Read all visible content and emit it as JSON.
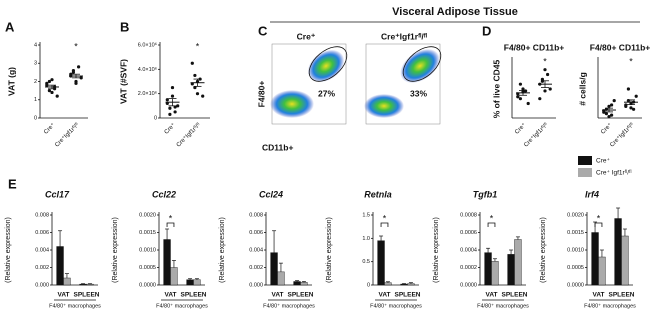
{
  "chart_data": [
    {
      "type": "dot",
      "letter": "A",
      "ylabel": "VAT (g)",
      "ylim": [
        0,
        4
      ],
      "yticks": [
        0,
        1,
        2,
        3,
        4
      ],
      "categories": [
        "Cre⁺",
        "Cre⁺Igf1rᶠˡ/ᶠˡ"
      ],
      "points": [
        [
          1.9,
          1.5,
          2.1,
          1.7,
          1.2,
          1.8,
          2.0,
          1.4,
          1.6
        ],
        [
          2.3,
          2.5,
          2.0,
          2.8,
          2.2,
          2.4,
          2.6,
          1.9
        ]
      ],
      "means": [
        1.7,
        2.3
      ],
      "sems": [
        0.1,
        0.1
      ],
      "annotation": "*",
      "color": "#111111"
    },
    {
      "type": "dot",
      "letter": "B",
      "ylabel": "VAT (#SVF)",
      "ylim": [
        0,
        6000000
      ],
      "yticks": [
        0,
        {
          "value": 2000000,
          "label": "2.0×10⁶"
        },
        {
          "value": 4000000,
          "label": "4.0×10⁶"
        },
        {
          "value": 6000000,
          "label": "6.0×10⁶"
        }
      ],
      "categories": [
        "Cre⁺",
        "Cre⁺Igf1rᶠˡ/ᶠˡ"
      ],
      "points": [
        [
          1200000,
          800000,
          2500000,
          500000,
          1000000,
          1500000,
          300000,
          1800000,
          900000
        ],
        [
          2800000,
          3500000,
          2000000,
          3200000,
          1800000,
          4500000,
          2500000,
          3000000
        ]
      ],
      "means": [
        1300000,
        2900000
      ],
      "sems": [
        300000,
        300000
      ],
      "annotation": "*",
      "color": "#111111"
    },
    {
      "type": "dot",
      "letter": "D",
      "title": "F4/80+ CD11b+",
      "ylabel": "% of live CD45",
      "ylim": [
        0,
        60
      ],
      "categories": [
        "Cre⁺",
        "Cre⁺Igf1rᶠˡ/ᶠˡ"
      ],
      "points": [
        [
          25,
          20,
          30,
          28,
          15,
          22,
          35,
          27
        ],
        [
          35,
          40,
          28,
          45,
          30,
          20,
          38,
          50
        ]
      ],
      "means": [
        26,
        35
      ],
      "sems": [
        2.5,
        3.5
      ],
      "annotation": "*",
      "color": "#111111"
    },
    {
      "type": "dot",
      "title": "F4/80+ CD11b+",
      "ylabel": "# cells/g",
      "ylim": [
        0,
        40
      ],
      "categories": [
        "Cre⁺",
        "Cre⁺Igf1rᶠˡ/ᶠˡ"
      ],
      "points": [
        [
          5,
          3,
          8,
          2,
          12,
          4,
          6,
          1,
          9
        ],
        [
          8,
          12,
          10,
          6,
          15,
          9,
          20,
          7,
          11
        ]
      ],
      "means": [
        5.5,
        10.9
      ],
      "sems": [
        1.3,
        1.6
      ],
      "annotation": "*",
      "color": "#111111"
    },
    {
      "type": "bar",
      "letter": "E",
      "title": "Ccl17",
      "ylabel": "(Relative expression)",
      "xlabel": "F4/80⁺ macrophages",
      "ylim": [
        0,
        0.008
      ],
      "yticks": [
        {
          "value": 0,
          "label": "0.000"
        },
        0.002,
        0.004,
        0.006,
        0.008
      ],
      "categories": [
        "VAT",
        "SPLEEN"
      ],
      "series": [
        {
          "color": "#111111",
          "values": [
            0.0044,
            0.0001
          ],
          "errors": [
            0.0018,
            5e-05
          ]
        },
        {
          "color": "#aaaaaa",
          "values": [
            0.0008,
            0.0001
          ],
          "errors": [
            0.0005,
            5e-05
          ]
        }
      ]
    },
    {
      "type": "bar",
      "title": "Ccl22",
      "ylabel": "(Relative expression)",
      "xlabel": "F4/80⁺ macrophages",
      "ylim": [
        0,
        0.002
      ],
      "yticks": [
        {
          "value": 0,
          "label": "0.0000"
        },
        0.0005,
        {
          "value": 0.001,
          "label": "0.0010"
        },
        0.0015,
        {
          "value": 0.002,
          "label": "0.0020"
        }
      ],
      "categories": [
        "VAT",
        "SPLEEN"
      ],
      "annotation": "*",
      "series": [
        {
          "color": "#111111",
          "values": [
            0.0013,
            0.00015
          ],
          "errors": [
            0.0003,
            3e-05
          ]
        },
        {
          "color": "#aaaaaa",
          "values": [
            0.0005,
            0.00015
          ],
          "errors": [
            0.0002,
            3e-05
          ]
        }
      ]
    },
    {
      "type": "bar",
      "title": "Ccl24",
      "ylabel": "(Relative expression)",
      "xlabel": "F4/80⁺ macrophages",
      "ylim": [
        0,
        0.008
      ],
      "yticks": [
        {
          "value": 0,
          "label": "0.000"
        },
        0.002,
        0.004,
        0.006,
        0.008
      ],
      "categories": [
        "VAT",
        "SPLEEN"
      ],
      "series": [
        {
          "color": "#111111",
          "values": [
            0.0037,
            0.0004
          ],
          "errors": [
            0.0025,
            0.0001
          ]
        },
        {
          "color": "#aaaaaa",
          "values": [
            0.0015,
            0.0003
          ],
          "errors": [
            0.001,
            0.0001
          ]
        }
      ]
    },
    {
      "type": "bar",
      "title": "Retnla",
      "ylabel": "(Relative expression)",
      "xlabel": "F4/80⁺ macrophages",
      "ylim": [
        0,
        1.5
      ],
      "yticks": [
        0,
        0.5,
        {
          "value": 1,
          "label": "1.0"
        },
        1.5
      ],
      "categories": [
        "VAT",
        "SPLEEN"
      ],
      "annotation": "*",
      "series": [
        {
          "color": "#111111",
          "values": [
            0.95,
            0.02
          ],
          "errors": [
            0.1,
            0.01
          ]
        },
        {
          "color": "#aaaaaa",
          "values": [
            0.05,
            0.03
          ],
          "errors": [
            0.02,
            0.02
          ]
        }
      ]
    },
    {
      "type": "bar",
      "title": "Tgfb1",
      "ylabel": "(Relative expression)",
      "xlabel": "F4/80⁺ macrophages",
      "ylim": [
        0,
        0.0008
      ],
      "yticks": [
        {
          "value": 0,
          "label": "0.0000"
        },
        0.0002,
        0.0004,
        0.0006,
        0.0008
      ],
      "categories": [
        "VAT",
        "SPLEEN"
      ],
      "annotation": "*",
      "series": [
        {
          "color": "#111111",
          "values": [
            0.00037,
            0.00035
          ],
          "errors": [
            5e-05,
            5e-05
          ]
        },
        {
          "color": "#aaaaaa",
          "values": [
            0.00027,
            0.00052
          ],
          "errors": [
            3e-05,
            3e-05
          ]
        }
      ]
    },
    {
      "type": "bar",
      "title": "Irf4",
      "ylabel": "(Relative expression)",
      "xlabel": "F4/80⁺ macrophages",
      "ylim": [
        0,
        0.002
      ],
      "yticks": [
        {
          "value": 0,
          "label": "0.0000"
        },
        0.0005,
        {
          "value": 0.001,
          "label": "0.0010"
        },
        0.0015,
        {
          "value": 0.002,
          "label": "0.0020"
        }
      ],
      "categories": [
        "VAT",
        "SPLEEN"
      ],
      "annotation": "*",
      "series": [
        {
          "color": "#111111",
          "values": [
            0.0015,
            0.0019
          ],
          "errors": [
            0.0003,
            0.0003
          ]
        },
        {
          "color": "#aaaaaa",
          "values": [
            0.0008,
            0.0014
          ],
          "errors": [
            0.0002,
            0.0002
          ]
        }
      ]
    }
  ],
  "flow": {
    "letter": "C",
    "title": "Visceral Adipose Tissue",
    "yaxis": "F4/80+",
    "xaxis": "CD11b+",
    "plots": [
      {
        "label": "Cre⁺",
        "gate": "27%"
      },
      {
        "label": "Cre⁺Igf1rᶠˡ/ᶠˡ",
        "gate": "33%"
      }
    ]
  },
  "legend": [
    {
      "name": "Cre⁺",
      "color": "#111111"
    },
    {
      "name": "Cre⁺ Igf1rᶠˡ/ᶠˡ",
      "color": "#aaaaaa"
    }
  ]
}
